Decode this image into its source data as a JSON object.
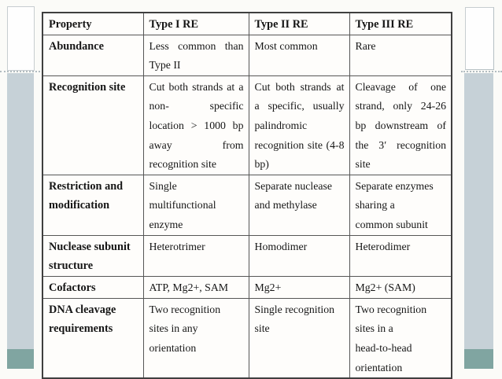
{
  "slide": {
    "background": "#fbfbf8",
    "decor": {
      "bar_color": "#c6d1d7",
      "accent_color": "#80a5a1",
      "box_fill": "#fefefe",
      "box_border": "#c7cdd0",
      "dotted_color": "#b2bcc0"
    }
  },
  "table": {
    "border_color": "#3f3f3f",
    "grid_color": "#565656",
    "text_color": "#161616",
    "columns": [
      "Property",
      "Type I RE",
      "Type II RE",
      "Type III RE"
    ],
    "rows": [
      {
        "cells": [
          {
            "lines": [
              "Abundance"
            ],
            "justify": false
          },
          {
            "lines": [
              "Less common than",
              "Type II"
            ],
            "justify": true
          },
          {
            "lines": [
              "Most common"
            ],
            "justify": false
          },
          {
            "lines": [
              "Rare"
            ],
            "justify": false
          }
        ]
      },
      {
        "cells": [
          {
            "lines": [
              "Recognition site"
            ],
            "justify": false
          },
          {
            "lines": [
              "Cut both strands at a",
              "non- specific",
              "location > 1000 bp",
              "away from",
              "recognition site"
            ],
            "justify": true
          },
          {
            "lines": [
              "Cut both strands at",
              "a specific, usually",
              "palindromic",
              "recognition site (4-8",
              "bp)"
            ],
            "justify": true
          },
          {
            "lines": [
              "Cleavage of one",
              "strand, only 24-26",
              "bp downstream of",
              "the 3′ recognition",
              "site"
            ],
            "justify": true
          }
        ]
      },
      {
        "cells": [
          {
            "lines": [
              "Restriction and",
              "modification"
            ],
            "justify": false
          },
          {
            "lines": [
              "Single",
              "multifunctional",
              "enzyme"
            ],
            "justify": false
          },
          {
            "lines": [
              "Separate nuclease",
              "and methylase"
            ],
            "justify": false
          },
          {
            "lines": [
              "Separate enzymes",
              "sharing a",
              "common subunit"
            ],
            "justify": false
          }
        ]
      },
      {
        "cells": [
          {
            "lines": [
              "Nuclease subunit",
              "structure"
            ],
            "justify": false
          },
          {
            "lines": [
              "Heterotrimer"
            ],
            "justify": false
          },
          {
            "lines": [
              "Homodimer"
            ],
            "justify": false
          },
          {
            "lines": [
              "Heterodimer"
            ],
            "justify": false
          }
        ]
      },
      {
        "cells": [
          {
            "lines": [
              "Cofactors"
            ],
            "justify": false
          },
          {
            "lines": [
              "ATP, Mg2+, SAM"
            ],
            "justify": false
          },
          {
            "lines": [
              "Mg2+"
            ],
            "justify": false
          },
          {
            "lines": [
              "Mg2+ (SAM)"
            ],
            "justify": false
          }
        ]
      },
      {
        "cells": [
          {
            "lines": [
              "DNA cleavage",
              "requirements"
            ],
            "justify": false
          },
          {
            "lines": [
              "Two recognition",
              "sites in any",
              "orientation"
            ],
            "justify": false
          },
          {
            "lines": [
              "Single recognition",
              "site"
            ],
            "justify": false
          },
          {
            "lines": [
              "Two recognition",
              "sites in a",
              "head-to-head",
              "orientation"
            ],
            "justify": false
          }
        ]
      }
    ]
  }
}
